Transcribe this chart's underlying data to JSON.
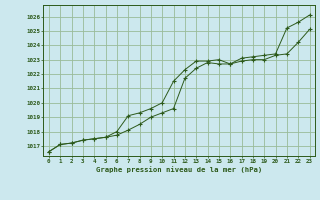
{
  "title": "Graphe pression niveau de la mer (hPa)",
  "bg_color": "#cce8ee",
  "grid_color": "#99bb99",
  "line_color": "#2d5a1b",
  "x_ticks": [
    0,
    1,
    2,
    3,
    4,
    5,
    6,
    7,
    8,
    9,
    10,
    11,
    12,
    13,
    14,
    15,
    16,
    17,
    18,
    19,
    20,
    21,
    22,
    23
  ],
  "ylim": [
    1016.3,
    1026.8
  ],
  "yticks": [
    1017,
    1018,
    1019,
    1020,
    1021,
    1022,
    1023,
    1024,
    1025,
    1026
  ],
  "series1": [
    1016.6,
    1017.1,
    1017.2,
    1017.4,
    1017.5,
    1017.6,
    1017.75,
    1018.1,
    1018.5,
    1019.0,
    1019.3,
    1019.6,
    1021.7,
    1022.4,
    1022.8,
    1022.7,
    1022.7,
    1022.9,
    1023.0,
    1023.0,
    1023.3,
    1023.4,
    1024.2,
    1025.1
  ],
  "series2": [
    1016.6,
    1017.1,
    1017.2,
    1017.4,
    1017.5,
    1017.6,
    1018.0,
    1019.1,
    1019.3,
    1019.6,
    1020.0,
    1021.5,
    1022.3,
    1022.9,
    1022.9,
    1023.0,
    1022.7,
    1023.1,
    1023.2,
    1023.3,
    1023.4,
    1025.2,
    1025.6,
    1026.1
  ]
}
